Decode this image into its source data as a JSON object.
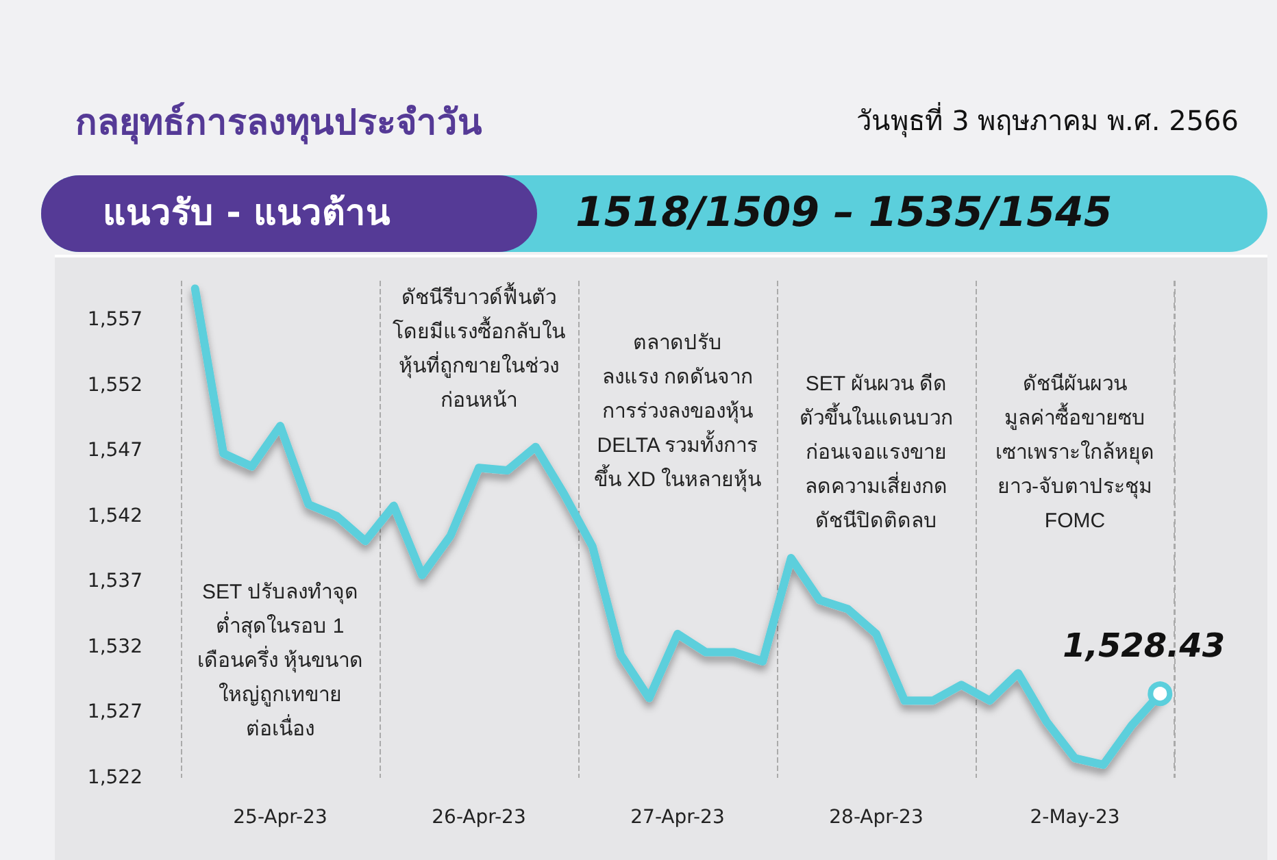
{
  "chart_data": {
    "type": "line",
    "title": "กลยุทธ์การลงทุนประจำวัน",
    "subtitle": "วันพุธที่ 3 พฤษภาคม พ.ศ. 2566",
    "annotations": [
      "แนวรับ - แนวต้าน",
      "1518/1509 – 1535/1545",
      "SET ปรับลงทำจุด\nต่ำสุดในรอบ 1\nเดือนครึ่ง หุ้นขนาด\nใหญ่ถูกเทขาย\nต่อเนื่อง",
      "ดัชนีรีบาวด์ฟื้นตัว\nโดยมีแรงซื้อกลับใน\nหุ้นที่ถูกขายในช่วง\nก่อนหน้า",
      "ตลาดปรับ\nลงแรง กดดันจาก\nการร่วงลงของหุ้น\nDELTA รวมทั้งการ\nขึ้น XD ในหลายหุ้น",
      "SET ผันผวน ดีด\nตัวขึ้นในแดนบวก\nก่อนเจอแรงขาย\nลดความเสี่ยงกด\nดัชนีปิดติดลบ",
      "ดัชนีผันผวน\nมูลค่าซื้อขายซบ\nเซาเพราะใกล้หยุด\nยาว-จับตาประชุม\nFOMC"
    ],
    "categories": [
      null,
      null,
      null,
      "25-Apr-23",
      null,
      null,
      null,
      null,
      null,
      null,
      "26-Apr-23",
      null,
      null,
      null,
      null,
      null,
      null,
      "27-Apr-23",
      null,
      null,
      null,
      null,
      null,
      null,
      "28-Apr-23",
      null,
      null,
      null,
      null,
      null,
      null,
      "2-May-23",
      null,
      null,
      null
    ],
    "series": [
      {
        "color": "#5bcfdc",
        "values": [
          1559.4,
          1546.8,
          1545.8,
          1548.9,
          1542.9,
          1542.0,
          1540.1,
          1542.8,
          1537.5,
          1540.5,
          1545.7,
          1545.5,
          1547.3,
          1543.7,
          1539.7,
          1531.4,
          1528.1,
          1533.0,
          1531.6,
          1531.6,
          1530.9,
          1538.8,
          1535.6,
          1534.9,
          1533.0,
          1527.9,
          1527.9,
          1529.1,
          1527.9,
          1530.0,
          1526.3,
          1523.5,
          1523.0,
          1526.0,
          1528.43
        ],
        "value_labels": [
          null,
          null,
          null,
          null,
          null,
          null,
          null,
          null,
          null,
          null,
          null,
          null,
          null,
          null,
          null,
          null,
          null,
          null,
          null,
          null,
          null,
          null,
          null,
          null,
          null,
          null,
          null,
          null,
          null,
          null,
          null,
          null,
          null,
          null,
          "1,528.43"
        ]
      }
    ],
    "ylim": [
      1522,
      1560
    ],
    "yticks": [
      {
        "value": 1522,
        "label": "1,522"
      },
      {
        "value": 1527,
        "label": "1,527"
      },
      {
        "value": 1532,
        "label": "1,532"
      },
      {
        "value": 1537,
        "label": "1,537"
      },
      {
        "value": 1542,
        "label": "1,542"
      },
      {
        "value": 1547,
        "label": "1,547"
      },
      {
        "value": 1552,
        "label": "1,552"
      },
      {
        "value": 1557,
        "label": "1,557"
      }
    ],
    "grid": "x"
  }
}
